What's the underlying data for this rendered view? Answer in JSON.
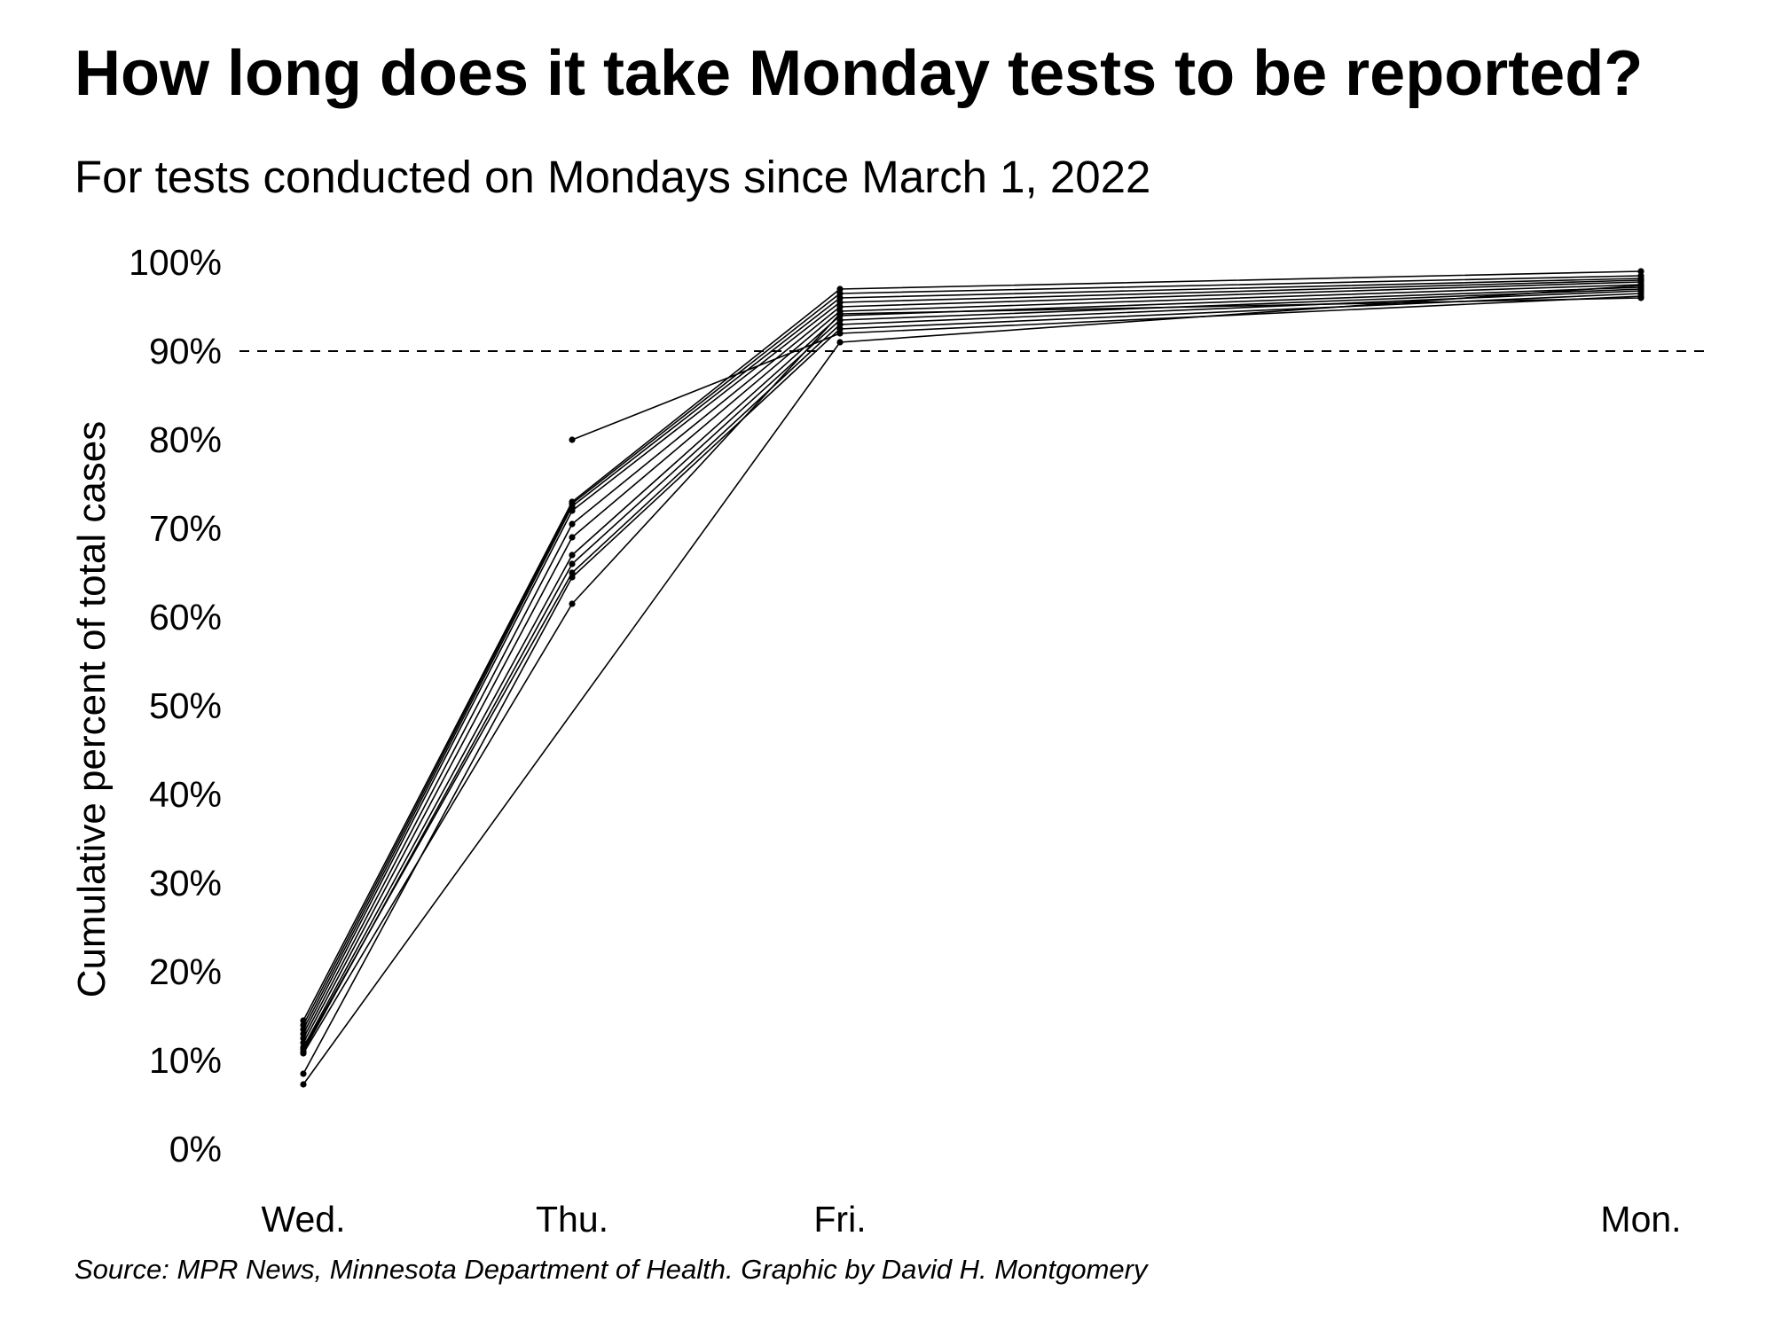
{
  "title": "How long does it take Monday tests to be reported?",
  "subtitle": "For tests conducted on Mondays since March 1, 2022",
  "source": "Source: MPR News, Minnesota Department of Health. Graphic by David H. Montgomery",
  "colors": {
    "line": "#000000",
    "reference_line": "#000000",
    "background": "#ffffff"
  },
  "chart_data": {
    "type": "line",
    "title": "How long does it take Monday tests to be reported?",
    "subtitle": "For tests conducted on Mondays since March 1, 2022",
    "xlabel": "",
    "ylabel": "Cumulative percent of total cases",
    "x_categories": [
      "Wed.",
      "Thu.",
      "Fri.",
      "Mon."
    ],
    "x_positions_days_after_test": [
      2,
      3,
      4,
      7
    ],
    "yticks": [
      "0%",
      "10%",
      "20%",
      "30%",
      "40%",
      "50%",
      "60%",
      "70%",
      "80%",
      "90%",
      "100%"
    ],
    "ylim": [
      0,
      100
    ],
    "reference_line": {
      "y": 90,
      "style": "dashed"
    },
    "legend": "none",
    "grid": false,
    "series": [
      {
        "values": [
          14.5,
          73.0,
          97.0,
          99.0
        ]
      },
      {
        "values": [
          14.0,
          72.8,
          96.5,
          98.5
        ]
      },
      {
        "values": [
          13.5,
          72.5,
          96.0,
          98.2
        ]
      },
      {
        "values": [
          13.0,
          72.0,
          95.5,
          98.0
        ]
      },
      {
        "values": [
          12.5,
          70.5,
          95.0,
          97.8
        ]
      },
      {
        "values": [
          12.0,
          69.0,
          94.5,
          97.5
        ]
      },
      {
        "values": [
          11.5,
          67.0,
          94.0,
          97.2
        ]
      },
      {
        "values": [
          11.0,
          66.0,
          93.5,
          97.0
        ]
      },
      {
        "values": [
          11.3,
          65.0,
          93.0,
          96.8
        ]
      },
      {
        "values": [
          8.5,
          64.5,
          92.5,
          96.5
        ]
      },
      {
        "values": [
          null,
          80.0,
          92.0,
          96.2
        ]
      },
      {
        "values": [
          10.8,
          61.5,
          94.2,
          96.0
        ]
      },
      {
        "values": [
          7.3,
          null,
          91.0,
          97.4
        ]
      }
    ]
  }
}
